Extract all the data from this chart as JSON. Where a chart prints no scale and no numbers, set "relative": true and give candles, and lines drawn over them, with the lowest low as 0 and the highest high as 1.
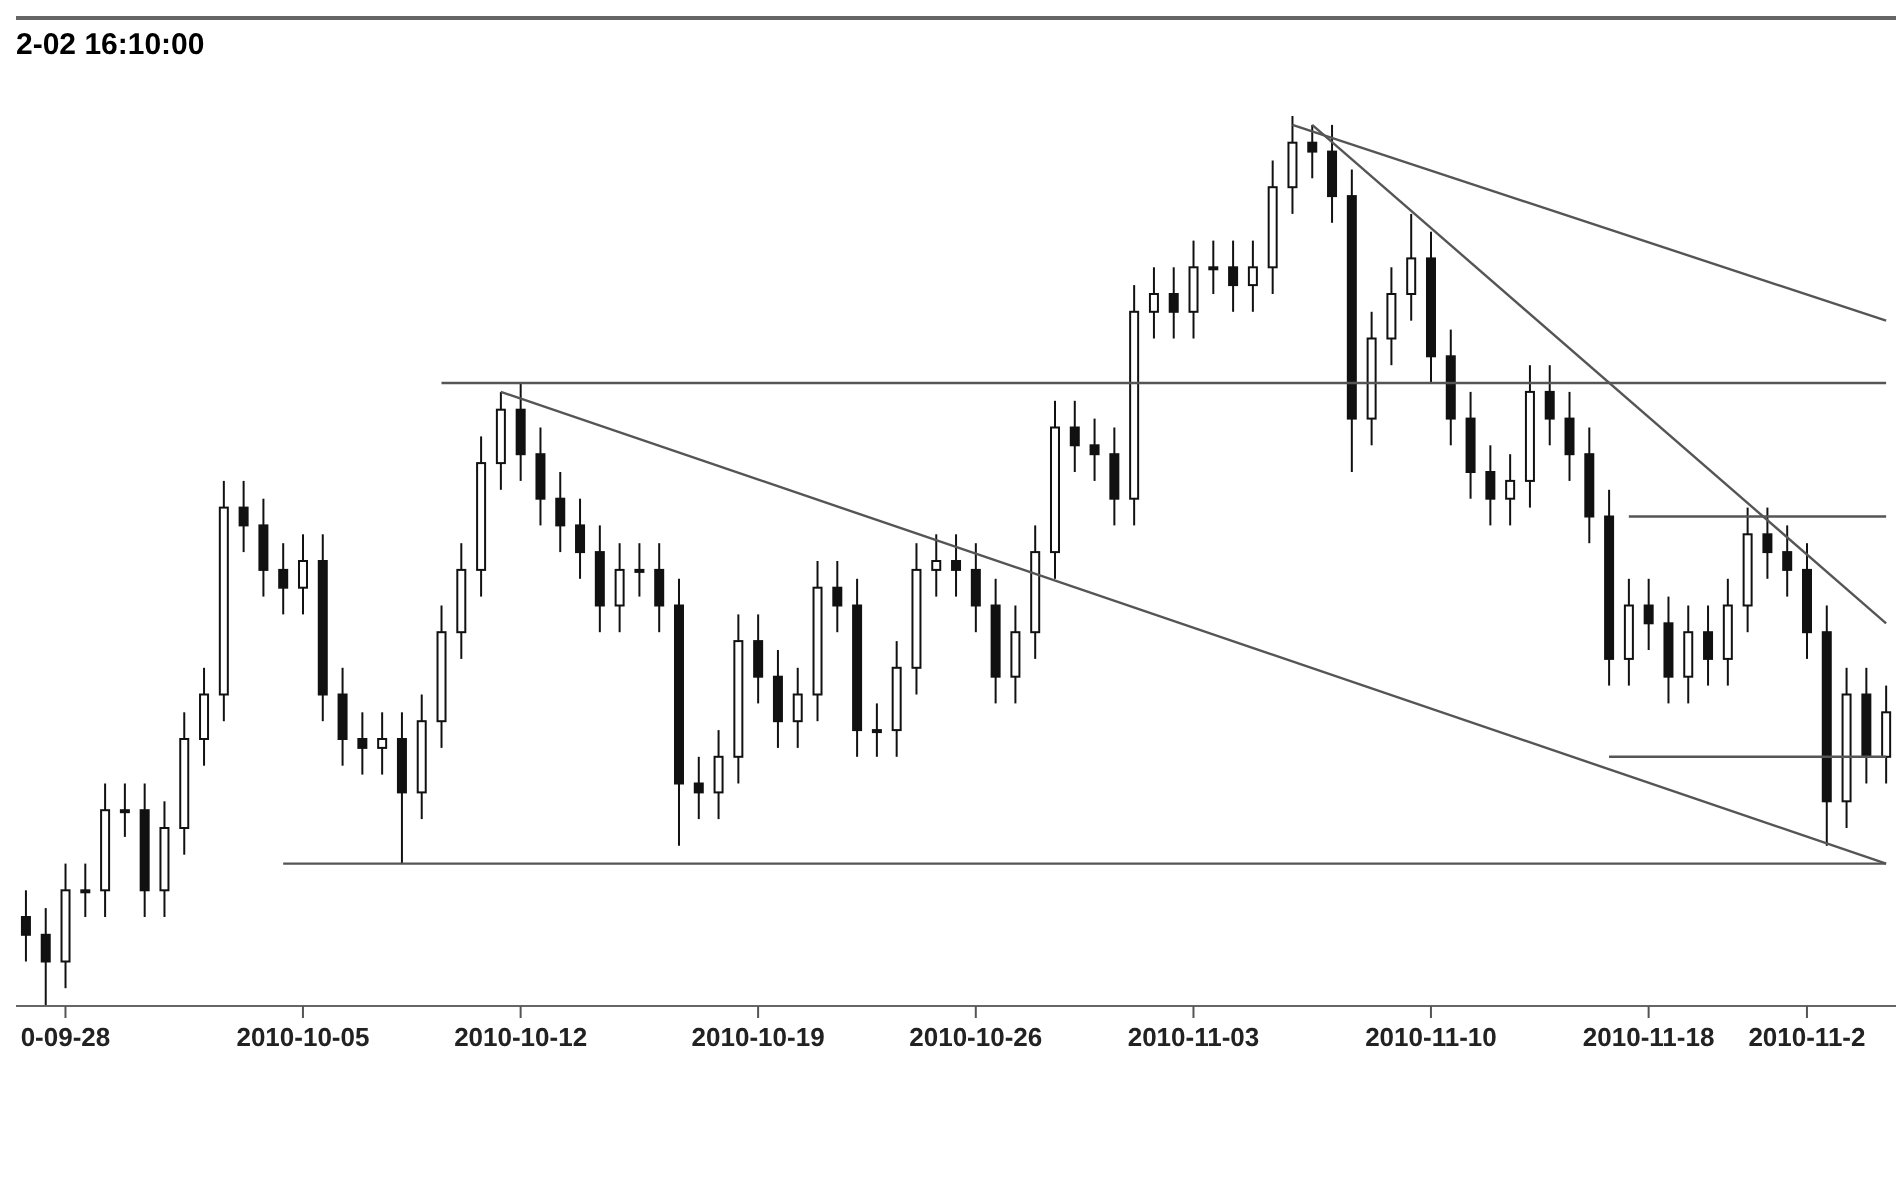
{
  "chart_data": {
    "type": "candlestick",
    "title": "2-02 16:10:00",
    "relative": true,
    "color": "#111111",
    "categories": [
      null,
      null,
      "0-09-28",
      null,
      null,
      null,
      null,
      null,
      null,
      null,
      null,
      null,
      null,
      null,
      "2010-10-05",
      null,
      null,
      null,
      null,
      null,
      null,
      null,
      null,
      null,
      null,
      "2010-10-12",
      null,
      null,
      null,
      null,
      null,
      null,
      null,
      null,
      null,
      null,
      null,
      "2010-10-19",
      null,
      null,
      null,
      null,
      null,
      null,
      null,
      null,
      null,
      null,
      "2010-10-26",
      null,
      null,
      null,
      null,
      null,
      null,
      null,
      null,
      null,
      null,
      "2010-11-03",
      null,
      null,
      null,
      null,
      null,
      null,
      null,
      null,
      null,
      null,
      null,
      "2010-11-10",
      null,
      null,
      null,
      null,
      null,
      null,
      null,
      null,
      null,
      null,
      "2010-11-18",
      null,
      null,
      null,
      null,
      null,
      null,
      null,
      "2010-11-2",
      null,
      null,
      null,
      null
    ],
    "ohlc": [
      [
        0.1,
        0.13,
        0.05,
        0.08
      ],
      [
        0.08,
        0.11,
        0,
        0.05
      ],
      [
        0.05,
        0.16,
        0.02,
        0.13
      ],
      [
        0.13,
        0.16,
        0.1,
        0.13
      ],
      [
        0.13,
        0.25,
        0.1,
        0.22
      ],
      [
        0.22,
        0.25,
        0.19,
        0.22
      ],
      [
        0.22,
        0.25,
        0.1,
        0.13
      ],
      [
        0.13,
        0.23,
        0.1,
        0.2
      ],
      [
        0.2,
        0.33,
        0.17,
        0.3
      ],
      [
        0.3,
        0.38,
        0.27,
        0.35
      ],
      [
        0.35,
        0.59,
        0.32,
        0.56
      ],
      [
        0.56,
        0.59,
        0.51,
        0.54
      ],
      [
        0.54,
        0.57,
        0.46,
        0.49
      ],
      [
        0.49,
        0.52,
        0.44,
        0.47
      ],
      [
        0.47,
        0.53,
        0.44,
        0.5
      ],
      [
        0.5,
        0.53,
        0.32,
        0.35
      ],
      [
        0.35,
        0.38,
        0.27,
        0.3
      ],
      [
        0.3,
        0.33,
        0.26,
        0.29
      ],
      [
        0.29,
        0.33,
        0.26,
        0.3
      ],
      [
        0.3,
        0.33,
        0.16,
        0.24
      ],
      [
        0.24,
        0.35,
        0.21,
        0.32
      ],
      [
        0.32,
        0.45,
        0.29,
        0.42
      ],
      [
        0.42,
        0.52,
        0.39,
        0.49
      ],
      [
        0.49,
        0.64,
        0.46,
        0.61
      ],
      [
        0.61,
        0.69,
        0.58,
        0.67
      ],
      [
        0.67,
        0.7,
        0.59,
        0.62
      ],
      [
        0.62,
        0.65,
        0.54,
        0.57
      ],
      [
        0.57,
        0.6,
        0.51,
        0.54
      ],
      [
        0.54,
        0.57,
        0.48,
        0.51
      ],
      [
        0.51,
        0.54,
        0.42,
        0.45
      ],
      [
        0.45,
        0.52,
        0.42,
        0.49
      ],
      [
        0.49,
        0.52,
        0.46,
        0.49
      ],
      [
        0.49,
        0.52,
        0.42,
        0.45
      ],
      [
        0.45,
        0.48,
        0.18,
        0.25
      ],
      [
        0.25,
        0.28,
        0.21,
        0.24
      ],
      [
        0.24,
        0.31,
        0.21,
        0.28
      ],
      [
        0.28,
        0.44,
        0.25,
        0.41
      ],
      [
        0.41,
        0.44,
        0.34,
        0.37
      ],
      [
        0.37,
        0.4,
        0.29,
        0.32
      ],
      [
        0.32,
        0.38,
        0.29,
        0.35
      ],
      [
        0.35,
        0.5,
        0.32,
        0.47
      ],
      [
        0.47,
        0.5,
        0.42,
        0.45
      ],
      [
        0.45,
        0.48,
        0.28,
        0.31
      ],
      [
        0.31,
        0.34,
        0.28,
        0.31
      ],
      [
        0.31,
        0.41,
        0.28,
        0.38
      ],
      [
        0.38,
        0.52,
        0.35,
        0.49
      ],
      [
        0.49,
        0.53,
        0.46,
        0.5
      ],
      [
        0.5,
        0.53,
        0.46,
        0.49
      ],
      [
        0.49,
        0.52,
        0.42,
        0.45
      ],
      [
        0.45,
        0.48,
        0.34,
        0.37
      ],
      [
        0.37,
        0.45,
        0.34,
        0.42
      ],
      [
        0.42,
        0.54,
        0.39,
        0.51
      ],
      [
        0.51,
        0.68,
        0.48,
        0.65
      ],
      [
        0.65,
        0.68,
        0.6,
        0.63
      ],
      [
        0.63,
        0.66,
        0.59,
        0.62
      ],
      [
        0.62,
        0.65,
        0.54,
        0.57
      ],
      [
        0.57,
        0.81,
        0.54,
        0.78
      ],
      [
        0.78,
        0.83,
        0.75,
        0.8
      ],
      [
        0.8,
        0.83,
        0.75,
        0.78
      ],
      [
        0.78,
        0.86,
        0.75,
        0.83
      ],
      [
        0.83,
        0.86,
        0.8,
        0.83
      ],
      [
        0.83,
        0.86,
        0.78,
        0.81
      ],
      [
        0.81,
        0.86,
        0.78,
        0.83
      ],
      [
        0.83,
        0.95,
        0.8,
        0.92
      ],
      [
        0.92,
        1,
        0.89,
        0.97
      ],
      [
        0.97,
        0.99,
        0.93,
        0.96
      ],
      [
        0.96,
        0.99,
        0.88,
        0.91
      ],
      [
        0.91,
        0.94,
        0.6,
        0.66
      ],
      [
        0.66,
        0.78,
        0.63,
        0.75
      ],
      [
        0.75,
        0.83,
        0.72,
        0.8
      ],
      [
        0.8,
        0.89,
        0.77,
        0.84
      ],
      [
        0.84,
        0.87,
        0.7,
        0.73
      ],
      [
        0.73,
        0.76,
        0.63,
        0.66
      ],
      [
        0.66,
        0.69,
        0.57,
        0.6
      ],
      [
        0.6,
        0.63,
        0.54,
        0.57
      ],
      [
        0.57,
        0.62,
        0.54,
        0.59
      ],
      [
        0.59,
        0.72,
        0.56,
        0.69
      ],
      [
        0.69,
        0.72,
        0.63,
        0.66
      ],
      [
        0.66,
        0.69,
        0.59,
        0.62
      ],
      [
        0.62,
        0.65,
        0.52,
        0.55
      ],
      [
        0.55,
        0.58,
        0.36,
        0.39
      ],
      [
        0.39,
        0.48,
        0.36,
        0.45
      ],
      [
        0.45,
        0.48,
        0.4,
        0.43
      ],
      [
        0.43,
        0.46,
        0.34,
        0.37
      ],
      [
        0.37,
        0.45,
        0.34,
        0.42
      ],
      [
        0.42,
        0.45,
        0.36,
        0.39
      ],
      [
        0.39,
        0.48,
        0.36,
        0.45
      ],
      [
        0.45,
        0.56,
        0.42,
        0.53
      ],
      [
        0.53,
        0.56,
        0.48,
        0.51
      ],
      [
        0.51,
        0.54,
        0.46,
        0.49
      ],
      [
        0.49,
        0.52,
        0.39,
        0.42
      ],
      [
        0.42,
        0.45,
        0.18,
        0.23
      ],
      [
        0.23,
        0.38,
        0.2,
        0.35
      ],
      [
        0.35,
        0.38,
        0.25,
        0.28
      ],
      [
        0.28,
        0.36,
        0.25,
        0.33
      ]
    ],
    "series": [
      {
        "type": "line",
        "color": "#555555",
        "values": [
          null,
          null,
          null,
          null,
          null,
          null,
          null,
          null,
          null,
          null,
          null,
          null,
          null,
          null,
          null,
          null,
          null,
          null,
          null,
          null,
          null,
          null,
          null,
          null,
          0.69,
          null,
          null,
          null,
          null,
          null,
          null,
          null,
          null,
          null,
          null,
          null,
          null,
          null,
          null,
          null,
          null,
          null,
          null,
          null,
          null,
          null,
          null,
          null,
          null,
          null,
          null,
          null,
          null,
          null,
          null,
          null,
          null,
          null,
          null,
          null,
          null,
          null,
          null,
          null,
          null,
          null,
          null,
          null,
          null,
          null,
          null,
          null,
          null,
          null,
          null,
          null,
          null,
          null,
          null,
          null,
          null,
          null,
          null,
          null,
          null,
          null,
          null,
          null,
          null,
          null,
          null,
          null,
          null,
          null,
          0.16
        ]
      },
      {
        "type": "line",
        "color": "#555555",
        "values": [
          null,
          null,
          null,
          null,
          null,
          null,
          null,
          null,
          null,
          null,
          null,
          null,
          null,
          null,
          null,
          null,
          null,
          null,
          null,
          null,
          null,
          null,
          null,
          null,
          null,
          null,
          null,
          null,
          null,
          null,
          null,
          null,
          null,
          null,
          null,
          null,
          null,
          null,
          null,
          null,
          null,
          null,
          null,
          null,
          null,
          null,
          null,
          null,
          null,
          null,
          null,
          null,
          null,
          null,
          null,
          null,
          null,
          null,
          null,
          null,
          null,
          null,
          null,
          null,
          null,
          0.99,
          null,
          null,
          null,
          null,
          null,
          null,
          null,
          null,
          null,
          null,
          null,
          null,
          null,
          null,
          null,
          null,
          null,
          null,
          null,
          null,
          null,
          null,
          null,
          null,
          null,
          null,
          null,
          null,
          0.43
        ]
      },
      {
        "type": "line",
        "color": "#555555",
        "values": [
          null,
          null,
          null,
          null,
          null,
          null,
          null,
          null,
          null,
          null,
          null,
          null,
          null,
          null,
          null,
          null,
          null,
          null,
          null,
          null,
          null,
          null,
          null,
          null,
          null,
          null,
          null,
          null,
          null,
          null,
          null,
          null,
          null,
          null,
          null,
          null,
          null,
          null,
          null,
          null,
          null,
          null,
          null,
          null,
          null,
          null,
          null,
          null,
          null,
          null,
          null,
          null,
          null,
          null,
          null,
          null,
          null,
          null,
          null,
          null,
          null,
          null,
          null,
          null,
          0.99,
          null,
          null,
          null,
          null,
          null,
          null,
          null,
          null,
          null,
          null,
          null,
          null,
          null,
          null,
          null,
          null,
          null,
          null,
          null,
          null,
          null,
          null,
          null,
          null,
          null,
          null,
          null,
          null,
          null,
          0.77
        ]
      },
      {
        "type": "line",
        "color": "#555555",
        "values": [
          null,
          null,
          null,
          null,
          null,
          null,
          null,
          null,
          null,
          null,
          null,
          null,
          null,
          null,
          null,
          null,
          null,
          null,
          null,
          null,
          null,
          0.7,
          null,
          null,
          null,
          null,
          null,
          null,
          null,
          null,
          null,
          null,
          null,
          null,
          null,
          null,
          null,
          null,
          null,
          null,
          null,
          null,
          null,
          null,
          null,
          null,
          null,
          null,
          null,
          null,
          null,
          null,
          null,
          null,
          null,
          null,
          null,
          null,
          null,
          null,
          null,
          null,
          null,
          null,
          null,
          null,
          null,
          null,
          null,
          null,
          null,
          null,
          null,
          null,
          null,
          null,
          null,
          null,
          null,
          null,
          null,
          null,
          null,
          null,
          null,
          null,
          null,
          null,
          null,
          null,
          null,
          null,
          null,
          null,
          0.7
        ]
      },
      {
        "type": "line",
        "color": "#555555",
        "values": [
          null,
          null,
          null,
          null,
          null,
          null,
          null,
          null,
          null,
          null,
          null,
          null,
          null,
          0.16,
          null,
          null,
          null,
          null,
          null,
          null,
          null,
          null,
          null,
          null,
          null,
          null,
          null,
          null,
          null,
          null,
          null,
          null,
          null,
          null,
          null,
          null,
          null,
          null,
          null,
          null,
          null,
          null,
          null,
          null,
          null,
          null,
          null,
          null,
          null,
          null,
          null,
          null,
          null,
          null,
          null,
          null,
          null,
          null,
          null,
          null,
          null,
          null,
          null,
          null,
          null,
          null,
          null,
          null,
          null,
          null,
          null,
          null,
          null,
          null,
          null,
          null,
          null,
          null,
          null,
          null,
          null,
          null,
          null,
          null,
          null,
          null,
          null,
          null,
          null,
          null,
          null,
          null,
          null,
          null,
          0.16
        ]
      },
      {
        "type": "line",
        "color": "#555555",
        "values": [
          null,
          null,
          null,
          null,
          null,
          null,
          null,
          null,
          null,
          null,
          null,
          null,
          null,
          null,
          null,
          null,
          null,
          null,
          null,
          null,
          null,
          null,
          null,
          null,
          null,
          null,
          null,
          null,
          null,
          null,
          null,
          null,
          null,
          null,
          null,
          null,
          null,
          null,
          null,
          null,
          null,
          null,
          null,
          null,
          null,
          null,
          null,
          null,
          null,
          null,
          null,
          null,
          null,
          null,
          null,
          null,
          null,
          null,
          null,
          null,
          null,
          null,
          null,
          null,
          null,
          null,
          null,
          null,
          null,
          null,
          null,
          null,
          null,
          null,
          null,
          null,
          null,
          null,
          null,
          null,
          null,
          0.55,
          null,
          null,
          null,
          null,
          null,
          null,
          null,
          null,
          null,
          null,
          null,
          null,
          0.55
        ]
      },
      {
        "type": "line",
        "color": "#555555",
        "values": [
          null,
          null,
          null,
          null,
          null,
          null,
          null,
          null,
          null,
          null,
          null,
          null,
          null,
          null,
          null,
          null,
          null,
          null,
          null,
          null,
          null,
          null,
          null,
          null,
          null,
          null,
          null,
          null,
          null,
          null,
          null,
          null,
          null,
          null,
          null,
          null,
          null,
          null,
          null,
          null,
          null,
          null,
          null,
          null,
          null,
          null,
          null,
          null,
          null,
          null,
          null,
          null,
          null,
          null,
          null,
          null,
          null,
          null,
          null,
          null,
          null,
          null,
          null,
          null,
          null,
          null,
          null,
          null,
          null,
          null,
          null,
          null,
          null,
          null,
          null,
          null,
          null,
          null,
          null,
          null,
          0.28,
          null,
          null,
          null,
          null,
          null,
          null,
          null,
          null,
          null,
          null,
          null,
          null,
          null,
          0.28
        ]
      }
    ]
  }
}
